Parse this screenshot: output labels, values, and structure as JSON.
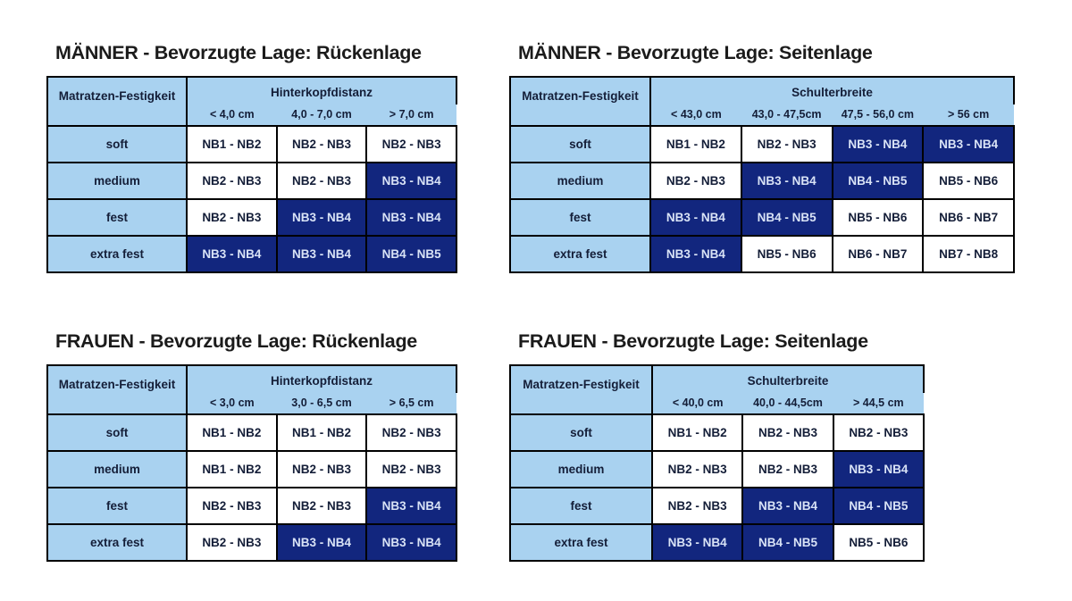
{
  "colors": {
    "header_light_blue": "#a9d2f0",
    "highlight_dark_blue": "#12267e",
    "border_black": "#000000",
    "dark_text": "#141e38",
    "light_text": "#d9e3f6",
    "page_background": "#ffffff"
  },
  "chart_data": [
    {
      "type": "table",
      "title": "MÄNNER - Bevorzugte Lage: Rückenlage",
      "corner_header": "Matratzen-Festigkeit",
      "column_group_header": "Hinterkopfdistanz",
      "column_headers": [
        "< 4,0 cm",
        "4,0 - 7,0 cm",
        "> 7,0 cm"
      ],
      "row_headers": [
        "soft",
        "medium",
        "fest",
        "extra fest"
      ],
      "rows": [
        [
          {
            "value": "NB1 - NB2",
            "highlighted": false
          },
          {
            "value": "NB2 - NB3",
            "highlighted": false
          },
          {
            "value": "NB2 - NB3",
            "highlighted": false
          }
        ],
        [
          {
            "value": "NB2 - NB3",
            "highlighted": false
          },
          {
            "value": "NB2 - NB3",
            "highlighted": false
          },
          {
            "value": "NB3 - NB4",
            "highlighted": true
          }
        ],
        [
          {
            "value": "NB2 - NB3",
            "highlighted": false
          },
          {
            "value": "NB3 - NB4",
            "highlighted": true
          },
          {
            "value": "NB3 - NB4",
            "highlighted": true
          }
        ],
        [
          {
            "value": "NB3 - NB4",
            "highlighted": true
          },
          {
            "value": "NB3 - NB4",
            "highlighted": true
          },
          {
            "value": "NB4 - NB5",
            "highlighted": true
          }
        ]
      ]
    },
    {
      "type": "table",
      "title": "MÄNNER - Bevorzugte Lage: Seitenlage",
      "corner_header": "Matratzen-Festigkeit",
      "column_group_header": "Schulterbreite",
      "column_headers": [
        "< 43,0 cm",
        "43,0 - 47,5cm",
        "47,5 - 56,0 cm",
        "> 56 cm"
      ],
      "row_headers": [
        "soft",
        "medium",
        "fest",
        "extra fest"
      ],
      "rows": [
        [
          {
            "value": "NB1 - NB2",
            "highlighted": false
          },
          {
            "value": "NB2 - NB3",
            "highlighted": false
          },
          {
            "value": "NB3 - NB4",
            "highlighted": true
          },
          {
            "value": "NB3 - NB4",
            "highlighted": true
          }
        ],
        [
          {
            "value": "NB2 - NB3",
            "highlighted": false
          },
          {
            "value": "NB3 - NB4",
            "highlighted": true
          },
          {
            "value": "NB4 - NB5",
            "highlighted": true
          },
          {
            "value": "NB5 - NB6",
            "highlighted": false
          }
        ],
        [
          {
            "value": "NB3 - NB4",
            "highlighted": true
          },
          {
            "value": "NB4 - NB5",
            "highlighted": true
          },
          {
            "value": "NB5 - NB6",
            "highlighted": false
          },
          {
            "value": "NB6 - NB7",
            "highlighted": false
          }
        ],
        [
          {
            "value": "NB3 - NB4",
            "highlighted": true
          },
          {
            "value": "NB5 - NB6",
            "highlighted": false
          },
          {
            "value": "NB6 - NB7",
            "highlighted": false
          },
          {
            "value": "NB7 - NB8",
            "highlighted": false
          }
        ]
      ]
    },
    {
      "type": "table",
      "title": "FRAUEN - Bevorzugte Lage: Rückenlage",
      "corner_header": "Matratzen-Festigkeit",
      "column_group_header": "Hinterkopfdistanz",
      "column_headers": [
        "< 3,0 cm",
        "3,0 - 6,5 cm",
        "> 6,5 cm"
      ],
      "row_headers": [
        "soft",
        "medium",
        "fest",
        "extra fest"
      ],
      "rows": [
        [
          {
            "value": "NB1 - NB2",
            "highlighted": false
          },
          {
            "value": "NB1 - NB2",
            "highlighted": false
          },
          {
            "value": "NB2 - NB3",
            "highlighted": false
          }
        ],
        [
          {
            "value": "NB1 - NB2",
            "highlighted": false
          },
          {
            "value": "NB2 - NB3",
            "highlighted": false
          },
          {
            "value": "NB2 - NB3",
            "highlighted": false
          }
        ],
        [
          {
            "value": "NB2 - NB3",
            "highlighted": false
          },
          {
            "value": "NB2 - NB3",
            "highlighted": false
          },
          {
            "value": "NB3 - NB4",
            "highlighted": true
          }
        ],
        [
          {
            "value": "NB2 - NB3",
            "highlighted": false
          },
          {
            "value": "NB3 - NB4",
            "highlighted": true
          },
          {
            "value": "NB3 - NB4",
            "highlighted": true
          }
        ]
      ]
    },
    {
      "type": "table",
      "title": "FRAUEN - Bevorzugte Lage: Seitenlage",
      "corner_header": "Matratzen-Festigkeit",
      "column_group_header": "Schulterbreite",
      "column_headers": [
        "< 40,0 cm",
        "40,0 - 44,5cm",
        "> 44,5 cm"
      ],
      "row_headers": [
        "soft",
        "medium",
        "fest",
        "extra fest"
      ],
      "rows": [
        [
          {
            "value": "NB1 - NB2",
            "highlighted": false
          },
          {
            "value": "NB2 - NB3",
            "highlighted": false
          },
          {
            "value": "NB2 - NB3",
            "highlighted": false
          }
        ],
        [
          {
            "value": "NB2 - NB3",
            "highlighted": false
          },
          {
            "value": "NB2 - NB3",
            "highlighted": false
          },
          {
            "value": "NB3 - NB4",
            "highlighted": true
          }
        ],
        [
          {
            "value": "NB2 - NB3",
            "highlighted": false
          },
          {
            "value": "NB3 - NB4",
            "highlighted": true
          },
          {
            "value": "NB4 - NB5",
            "highlighted": true
          }
        ],
        [
          {
            "value": "NB3 - NB4",
            "highlighted": true
          },
          {
            "value": "NB4 - NB5",
            "highlighted": true
          },
          {
            "value": "NB5 - NB6",
            "highlighted": false
          }
        ]
      ]
    }
  ]
}
